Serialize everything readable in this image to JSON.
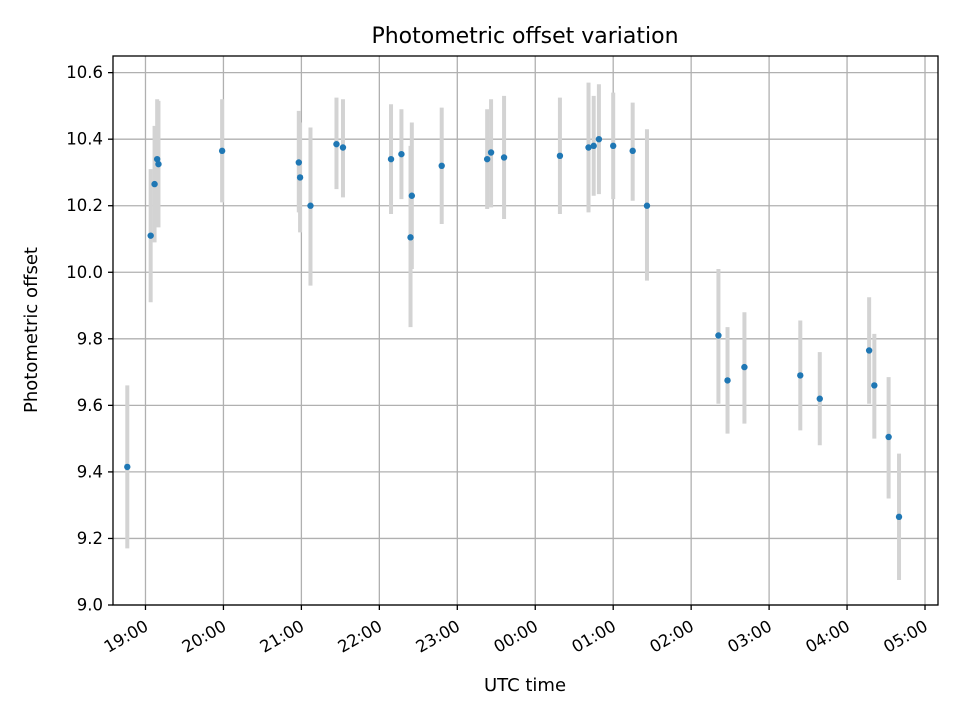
{
  "chart_data": {
    "type": "scatter",
    "title": "Photometric offset variation",
    "xlabel": "UTC time",
    "ylabel": "Photometric offset",
    "xlim": [
      "18:35",
      "05:10"
    ],
    "ylim": [
      9.0,
      10.65
    ],
    "x_ticks": [
      "19:00",
      "20:00",
      "21:00",
      "22:00",
      "23:00",
      "00:00",
      "01:00",
      "02:00",
      "03:00",
      "04:00",
      "05:00"
    ],
    "y_ticks": [
      "9.0",
      "9.2",
      "9.4",
      "9.6",
      "9.8",
      "10.0",
      "10.2",
      "10.4",
      "10.6"
    ],
    "grid": true,
    "marker_color": "#1f77b4",
    "errorbar_color": "#d3d3d3",
    "points": [
      {
        "time": "18:46",
        "y": 9.415,
        "err_low": 9.17,
        "err_high": 9.66
      },
      {
        "time": "19:04",
        "y": 10.11,
        "err_low": 9.91,
        "err_high": 10.31
      },
      {
        "time": "19:07",
        "y": 10.265,
        "err_low": 10.09,
        "err_high": 10.44
      },
      {
        "time": "19:09",
        "y": 10.34,
        "err_low": 10.16,
        "err_high": 10.52
      },
      {
        "time": "19:10",
        "y": 10.325,
        "err_low": 10.135,
        "err_high": 10.515
      },
      {
        "time": "19:59",
        "y": 10.365,
        "err_low": 10.21,
        "err_high": 10.52
      },
      {
        "time": "20:58",
        "y": 10.33,
        "err_low": 10.18,
        "err_high": 10.485
      },
      {
        "time": "20:59",
        "y": 10.285,
        "err_low": 10.12,
        "err_high": 10.45
      },
      {
        "time": "21:07",
        "y": 10.2,
        "err_low": 9.96,
        "err_high": 10.435
      },
      {
        "time": "21:27",
        "y": 10.385,
        "err_low": 10.25,
        "err_high": 10.525
      },
      {
        "time": "21:32",
        "y": 10.375,
        "err_low": 10.225,
        "err_high": 10.52
      },
      {
        "time": "22:09",
        "y": 10.34,
        "err_low": 10.175,
        "err_high": 10.505
      },
      {
        "time": "22:17",
        "y": 10.355,
        "err_low": 10.22,
        "err_high": 10.49
      },
      {
        "time": "22:24",
        "y": 10.105,
        "err_low": 9.835,
        "err_high": 10.38
      },
      {
        "time": "22:25",
        "y": 10.23,
        "err_low": 10.01,
        "err_high": 10.45
      },
      {
        "time": "22:48",
        "y": 10.32,
        "err_low": 10.145,
        "err_high": 10.495
      },
      {
        "time": "23:23",
        "y": 10.34,
        "err_low": 10.19,
        "err_high": 10.49
      },
      {
        "time": "23:26",
        "y": 10.36,
        "err_low": 10.195,
        "err_high": 10.52
      },
      {
        "time": "23:36",
        "y": 10.345,
        "err_low": 10.16,
        "err_high": 10.53
      },
      {
        "time": "00:19",
        "y": 10.35,
        "err_low": 10.175,
        "err_high": 10.525
      },
      {
        "time": "00:41",
        "y": 10.375,
        "err_low": 10.18,
        "err_high": 10.57
      },
      {
        "time": "00:45",
        "y": 10.38,
        "err_low": 10.23,
        "err_high": 10.53
      },
      {
        "time": "00:49",
        "y": 10.4,
        "err_low": 10.235,
        "err_high": 10.565
      },
      {
        "time": "01:00",
        "y": 10.38,
        "err_low": 10.22,
        "err_high": 10.54
      },
      {
        "time": "01:15",
        "y": 10.365,
        "err_low": 10.215,
        "err_high": 10.51
      },
      {
        "time": "01:26",
        "y": 10.2,
        "err_low": 9.975,
        "err_high": 10.43
      },
      {
        "time": "02:21",
        "y": 9.81,
        "err_low": 9.605,
        "err_high": 10.01
      },
      {
        "time": "02:28",
        "y": 9.675,
        "err_low": 9.515,
        "err_high": 9.835
      },
      {
        "time": "02:41",
        "y": 9.715,
        "err_low": 9.545,
        "err_high": 9.88
      },
      {
        "time": "03:24",
        "y": 9.69,
        "err_low": 9.525,
        "err_high": 9.855
      },
      {
        "time": "03:39",
        "y": 9.62,
        "err_low": 9.48,
        "err_high": 9.76
      },
      {
        "time": "04:17",
        "y": 9.765,
        "err_low": 9.605,
        "err_high": 9.925
      },
      {
        "time": "04:21",
        "y": 9.66,
        "err_low": 9.5,
        "err_high": 9.815
      },
      {
        "time": "04:32",
        "y": 9.505,
        "err_low": 9.32,
        "err_high": 9.685
      },
      {
        "time": "04:40",
        "y": 9.265,
        "err_low": 9.075,
        "err_high": 9.455
      }
    ]
  }
}
